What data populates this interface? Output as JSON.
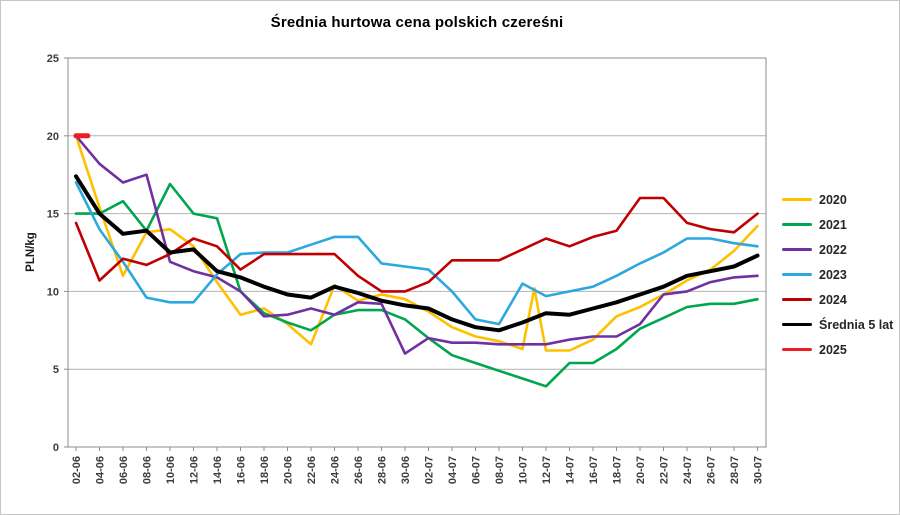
{
  "chart_data": {
    "type": "line",
    "title": "Średnia hurtowa cena polskich czereśni",
    "xlabel": "",
    "ylabel": "PLN/kg",
    "ylim": [
      0,
      25
    ],
    "y_ticks": [
      0,
      5,
      10,
      15,
      20,
      25
    ],
    "grid": "horizontal",
    "legend_position": "right",
    "x_unit": "days since 02-06, labels every 2 days",
    "x_labels": [
      "02-06",
      "04-06",
      "06-06",
      "08-06",
      "10-06",
      "12-06",
      "14-06",
      "16-06",
      "18-06",
      "20-06",
      "22-06",
      "24-06",
      "26-06",
      "28-06",
      "30-06",
      "02-07",
      "04-07",
      "06-07",
      "08-07",
      "10-07",
      "12-07",
      "14-07",
      "16-07",
      "18-07",
      "20-07",
      "22-07",
      "24-07",
      "26-07",
      "28-07",
      "30-07"
    ],
    "series": [
      {
        "name": "2020",
        "color": "#FFC000",
        "line_width": 2.6,
        "points": [
          [
            0,
            20
          ],
          [
            2,
            15.4
          ],
          [
            4,
            11
          ],
          [
            6,
            13.8
          ],
          [
            8,
            14
          ],
          [
            10,
            12.9
          ],
          [
            12,
            10.6
          ],
          [
            14,
            8.5
          ],
          [
            16,
            8.9
          ],
          [
            18,
            7.9
          ],
          [
            20,
            6.6
          ],
          [
            22,
            10.4
          ],
          [
            24,
            9.4
          ],
          [
            26,
            9.8
          ],
          [
            28,
            9.5
          ],
          [
            30,
            8.7
          ],
          [
            32,
            7.7
          ],
          [
            34,
            7.1
          ],
          [
            36,
            6.8
          ],
          [
            38,
            6.3
          ],
          [
            39,
            10.2
          ],
          [
            40,
            6.2
          ],
          [
            42,
            6.2
          ],
          [
            44,
            6.9
          ],
          [
            46,
            8.4
          ],
          [
            48,
            9
          ],
          [
            50,
            9.8
          ],
          [
            52,
            10.7
          ],
          [
            54,
            11.4
          ],
          [
            56,
            12.6
          ],
          [
            58,
            14.2
          ]
        ]
      },
      {
        "name": "2021",
        "color": "#00A64F",
        "line_width": 2.6,
        "points": [
          [
            0,
            15
          ],
          [
            2,
            15
          ],
          [
            4,
            15.8
          ],
          [
            6,
            13.9
          ],
          [
            8,
            16.9
          ],
          [
            10,
            15
          ],
          [
            12,
            14.7
          ],
          [
            14,
            10
          ],
          [
            16,
            8.6
          ],
          [
            18,
            8
          ],
          [
            20,
            7.5
          ],
          [
            22,
            8.5
          ],
          [
            24,
            8.8
          ],
          [
            26,
            8.8
          ],
          [
            28,
            8.2
          ],
          [
            30,
            7
          ],
          [
            32,
            5.9
          ],
          [
            34,
            5.4
          ],
          [
            36,
            4.9
          ],
          [
            38,
            4.4
          ],
          [
            40,
            3.9
          ],
          [
            42,
            5.4
          ],
          [
            44,
            5.4
          ],
          [
            46,
            6.3
          ],
          [
            48,
            7.6
          ],
          [
            50,
            8.3
          ],
          [
            52,
            9
          ],
          [
            54,
            9.2
          ],
          [
            56,
            9.2
          ],
          [
            58,
            9.5
          ]
        ]
      },
      {
        "name": "2022",
        "color": "#7030A0",
        "line_width": 2.6,
        "points": [
          [
            0,
            20
          ],
          [
            2,
            18.2
          ],
          [
            4,
            17
          ],
          [
            6,
            17.5
          ],
          [
            8,
            11.9
          ],
          [
            10,
            11.3
          ],
          [
            12,
            10.9
          ],
          [
            14,
            10
          ],
          [
            16,
            8.4
          ],
          [
            18,
            8.5
          ],
          [
            20,
            8.9
          ],
          [
            22,
            8.5
          ],
          [
            24,
            9.3
          ],
          [
            26,
            9.2
          ],
          [
            28,
            6
          ],
          [
            30,
            7
          ],
          [
            32,
            6.7
          ],
          [
            34,
            6.7
          ],
          [
            36,
            6.6
          ],
          [
            38,
            6.6
          ],
          [
            40,
            6.6
          ],
          [
            42,
            6.9
          ],
          [
            44,
            7.1
          ],
          [
            46,
            7.1
          ],
          [
            48,
            7.9
          ],
          [
            50,
            9.8
          ],
          [
            52,
            10
          ],
          [
            54,
            10.6
          ],
          [
            56,
            10.9
          ],
          [
            58,
            11
          ]
        ]
      },
      {
        "name": "2023",
        "color": "#2DA8DF",
        "line_width": 2.6,
        "points": [
          [
            0,
            17
          ],
          [
            2,
            14
          ],
          [
            4,
            11.9
          ],
          [
            6,
            9.6
          ],
          [
            8,
            9.3
          ],
          [
            10,
            9.3
          ],
          [
            12,
            11.1
          ],
          [
            14,
            12.4
          ],
          [
            16,
            12.5
          ],
          [
            18,
            12.5
          ],
          [
            20,
            13
          ],
          [
            22,
            13.5
          ],
          [
            24,
            13.5
          ],
          [
            26,
            11.8
          ],
          [
            28,
            11.6
          ],
          [
            30,
            11.4
          ],
          [
            32,
            10
          ],
          [
            34,
            8.2
          ],
          [
            36,
            7.9
          ],
          [
            38,
            10.5
          ],
          [
            40,
            9.7
          ],
          [
            42,
            10
          ],
          [
            44,
            10.3
          ],
          [
            46,
            11
          ],
          [
            48,
            11.8
          ],
          [
            50,
            12.5
          ],
          [
            52,
            13.4
          ],
          [
            54,
            13.4
          ],
          [
            56,
            13.1
          ],
          [
            58,
            12.9
          ]
        ]
      },
      {
        "name": "2024",
        "color": "#C00000",
        "line_width": 2.6,
        "points": [
          [
            0,
            14.4
          ],
          [
            2,
            10.7
          ],
          [
            4,
            12.1
          ],
          [
            6,
            11.7
          ],
          [
            8,
            12.4
          ],
          [
            10,
            13.4
          ],
          [
            12,
            12.9
          ],
          [
            14,
            11.4
          ],
          [
            16,
            12.4
          ],
          [
            18,
            12.4
          ],
          [
            20,
            12.4
          ],
          [
            22,
            12.4
          ],
          [
            24,
            11
          ],
          [
            26,
            10
          ],
          [
            28,
            10
          ],
          [
            30,
            10.6
          ],
          [
            32,
            12
          ],
          [
            34,
            12
          ],
          [
            36,
            12
          ],
          [
            38,
            12.7
          ],
          [
            40,
            13.4
          ],
          [
            42,
            12.9
          ],
          [
            44,
            13.5
          ],
          [
            46,
            13.9
          ],
          [
            48,
            16
          ],
          [
            50,
            16
          ],
          [
            52,
            14.4
          ],
          [
            54,
            14
          ],
          [
            56,
            13.8
          ],
          [
            58,
            15
          ]
        ]
      },
      {
        "name": "Średnia 5 lat",
        "color": "#000000",
        "line_width": 4,
        "points": [
          [
            0,
            17.4
          ],
          [
            2,
            15
          ],
          [
            4,
            13.7
          ],
          [
            6,
            13.9
          ],
          [
            8,
            12.5
          ],
          [
            10,
            12.7
          ],
          [
            12,
            11.3
          ],
          [
            14,
            10.9
          ],
          [
            16,
            10.3
          ],
          [
            18,
            9.8
          ],
          [
            20,
            9.6
          ],
          [
            22,
            10.3
          ],
          [
            24,
            9.9
          ],
          [
            26,
            9.4
          ],
          [
            28,
            9.1
          ],
          [
            30,
            8.9
          ],
          [
            32,
            8.2
          ],
          [
            34,
            7.7
          ],
          [
            36,
            7.5
          ],
          [
            38,
            8
          ],
          [
            40,
            8.6
          ],
          [
            42,
            8.5
          ],
          [
            44,
            8.9
          ],
          [
            46,
            9.3
          ],
          [
            48,
            9.8
          ],
          [
            50,
            10.3
          ],
          [
            52,
            11
          ],
          [
            54,
            11.3
          ],
          [
            56,
            11.6
          ],
          [
            58,
            12.3
          ]
        ]
      },
      {
        "name": "2025",
        "color": "#ED1C24",
        "line_width": 5,
        "points": [
          [
            0,
            20
          ],
          [
            1,
            20
          ]
        ]
      }
    ]
  }
}
